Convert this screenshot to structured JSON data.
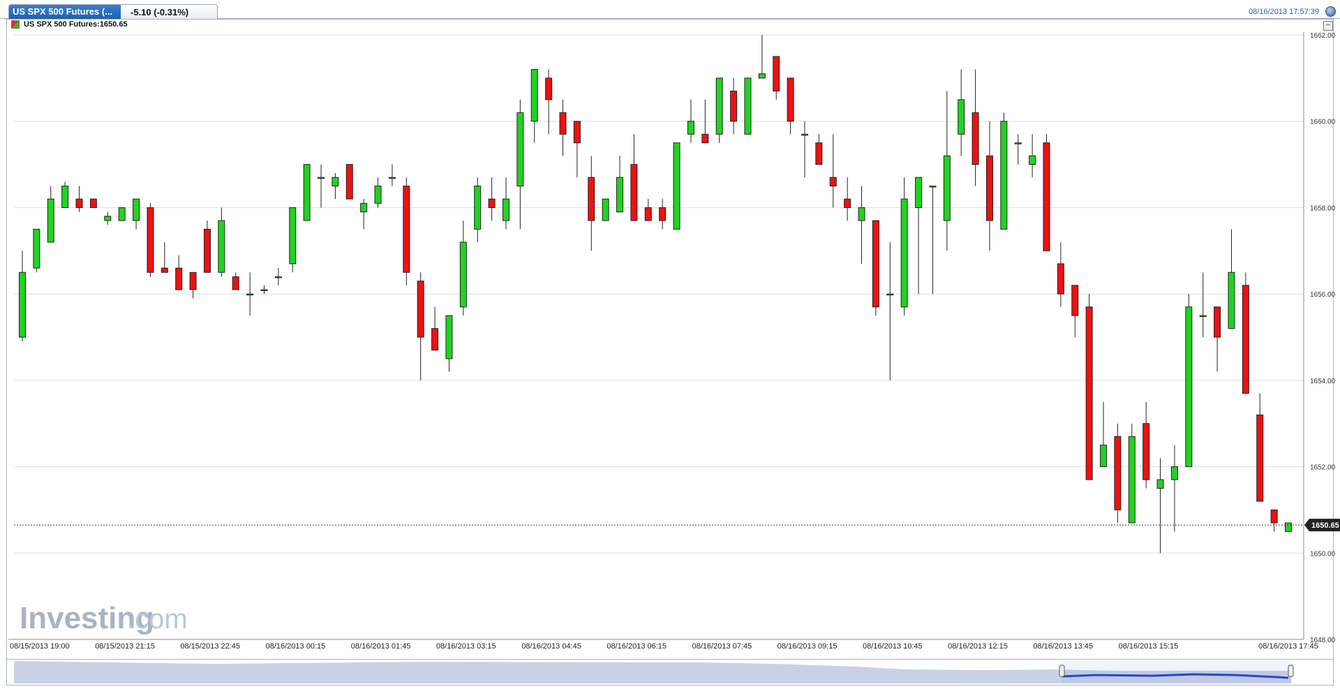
{
  "header": {
    "tab_name": "US SPX 500 Futures (...",
    "tab_change": "-5.10 (-0.31%)",
    "timestamp": "08/16/2013 17:57:39"
  },
  "legend": {
    "label": "US SPX 500 Futures:1650.65"
  },
  "watermark": {
    "brand": "Investing",
    "suffix": ".com"
  },
  "colors": {
    "up": "#21d321",
    "down": "#ee1111",
    "grid": "#dddddd",
    "axis": "#222222",
    "price_tag": "#222222",
    "navigator_fill": "#c9d1e6",
    "navigator_sel": "#2244cc"
  },
  "chart_data": {
    "type": "candlestick",
    "title": "US SPX 500 Futures",
    "last_price": 1650.65,
    "ylim": [
      1648,
      1662
    ],
    "y_ticks": [
      "1648.00",
      "1650.00",
      "1652.00",
      "1654.00",
      "1656.00",
      "1658.00",
      "1660.00",
      "1662.00"
    ],
    "x_ticks": [
      "08/15/2013 19:00",
      "08/15/2013 21:15",
      "08/15/2013 22:45",
      "08/16/2013 00:15",
      "08/16/2013 01:45",
      "08/16/2013 03:15",
      "08/16/2013 04:45",
      "08/16/2013 06:15",
      "08/16/2013 07:45",
      "08/16/2013 09:15",
      "08/16/2013 10:45",
      "08/16/2013 12:15",
      "08/16/2013 13:45",
      "08/16/2013 15:15",
      "08/16/2013 17:45"
    ],
    "grid": true,
    "candles": [
      {
        "o": 1655.0,
        "h": 1657.0,
        "l": 1654.9,
        "c": 1656.5
      },
      {
        "o": 1656.6,
        "h": 1657.5,
        "l": 1656.5,
        "c": 1657.5
      },
      {
        "o": 1657.2,
        "h": 1658.5,
        "l": 1657.2,
        "c": 1658.2
      },
      {
        "o": 1658.0,
        "h": 1658.6,
        "l": 1658.0,
        "c": 1658.5
      },
      {
        "o": 1658.2,
        "h": 1658.5,
        "l": 1657.9,
        "c": 1658.0
      },
      {
        "o": 1658.2,
        "h": 1658.2,
        "l": 1658.0,
        "c": 1658.0
      },
      {
        "o": 1657.7,
        "h": 1657.9,
        "l": 1657.6,
        "c": 1657.8
      },
      {
        "o": 1657.7,
        "h": 1658.0,
        "l": 1657.7,
        "c": 1658.0
      },
      {
        "o": 1657.7,
        "h": 1658.2,
        "l": 1657.5,
        "c": 1658.2
      },
      {
        "o": 1658.0,
        "h": 1658.1,
        "l": 1656.4,
        "c": 1656.5
      },
      {
        "o": 1656.6,
        "h": 1657.2,
        "l": 1656.5,
        "c": 1656.5
      },
      {
        "o": 1656.6,
        "h": 1656.9,
        "l": 1656.1,
        "c": 1656.1
      },
      {
        "o": 1656.5,
        "h": 1656.5,
        "l": 1655.9,
        "c": 1656.1
      },
      {
        "o": 1657.5,
        "h": 1657.7,
        "l": 1656.5,
        "c": 1656.5
      },
      {
        "o": 1656.5,
        "h": 1658.0,
        "l": 1656.4,
        "c": 1657.7
      },
      {
        "o": 1656.4,
        "h": 1656.5,
        "l": 1656.1,
        "c": 1656.1
      },
      {
        "o": 1656.0,
        "h": 1656.5,
        "l": 1655.5,
        "c": 1656.0
      },
      {
        "o": 1656.1,
        "h": 1656.2,
        "l": 1656.0,
        "c": 1656.1
      },
      {
        "o": 1656.4,
        "h": 1656.6,
        "l": 1656.2,
        "c": 1656.4
      },
      {
        "o": 1656.7,
        "h": 1658.0,
        "l": 1656.5,
        "c": 1658.0
      },
      {
        "o": 1657.7,
        "h": 1659.0,
        "l": 1657.7,
        "c": 1659.0
      },
      {
        "o": 1658.7,
        "h": 1659.0,
        "l": 1658.0,
        "c": 1658.7
      },
      {
        "o": 1658.5,
        "h": 1658.8,
        "l": 1658.2,
        "c": 1658.7
      },
      {
        "o": 1659.0,
        "h": 1659.0,
        "l": 1658.2,
        "c": 1658.2
      },
      {
        "o": 1657.9,
        "h": 1658.2,
        "l": 1657.5,
        "c": 1658.1
      },
      {
        "o": 1658.1,
        "h": 1658.7,
        "l": 1658.0,
        "c": 1658.5
      },
      {
        "o": 1658.7,
        "h": 1659.0,
        "l": 1658.5,
        "c": 1658.7
      },
      {
        "o": 1658.5,
        "h": 1658.7,
        "l": 1656.2,
        "c": 1656.5
      },
      {
        "o": 1656.3,
        "h": 1656.5,
        "l": 1654.0,
        "c": 1655.0
      },
      {
        "o": 1655.2,
        "h": 1655.7,
        "l": 1654.7,
        "c": 1654.7
      },
      {
        "o": 1654.5,
        "h": 1655.5,
        "l": 1654.2,
        "c": 1655.5
      },
      {
        "o": 1655.7,
        "h": 1657.7,
        "l": 1655.5,
        "c": 1657.2
      },
      {
        "o": 1657.5,
        "h": 1658.7,
        "l": 1657.2,
        "c": 1658.5
      },
      {
        "o": 1658.2,
        "h": 1658.7,
        "l": 1657.7,
        "c": 1658.0
      },
      {
        "o": 1657.7,
        "h": 1658.7,
        "l": 1657.5,
        "c": 1658.2
      },
      {
        "o": 1658.5,
        "h": 1660.5,
        "l": 1657.5,
        "c": 1660.2
      },
      {
        "o": 1660.0,
        "h": 1661.2,
        "l": 1659.5,
        "c": 1661.2
      },
      {
        "o": 1661.0,
        "h": 1661.2,
        "l": 1659.7,
        "c": 1660.5
      },
      {
        "o": 1660.2,
        "h": 1660.5,
        "l": 1659.2,
        "c": 1659.7
      },
      {
        "o": 1660.0,
        "h": 1660.0,
        "l": 1658.7,
        "c": 1659.5
      },
      {
        "o": 1658.7,
        "h": 1659.2,
        "l": 1657.0,
        "c": 1657.7
      },
      {
        "o": 1657.7,
        "h": 1658.2,
        "l": 1657.7,
        "c": 1658.2
      },
      {
        "o": 1657.9,
        "h": 1659.2,
        "l": 1657.9,
        "c": 1658.7
      },
      {
        "o": 1659.0,
        "h": 1659.7,
        "l": 1657.7,
        "c": 1657.7
      },
      {
        "o": 1658.0,
        "h": 1658.2,
        "l": 1657.7,
        "c": 1657.7
      },
      {
        "o": 1658.0,
        "h": 1658.2,
        "l": 1657.5,
        "c": 1657.7
      },
      {
        "o": 1657.5,
        "h": 1659.5,
        "l": 1657.5,
        "c": 1659.5
      },
      {
        "o": 1659.7,
        "h": 1660.5,
        "l": 1659.5,
        "c": 1660.0
      },
      {
        "o": 1659.7,
        "h": 1660.5,
        "l": 1659.5,
        "c": 1659.5
      },
      {
        "o": 1659.7,
        "h": 1661.0,
        "l": 1659.5,
        "c": 1661.0
      },
      {
        "o": 1660.7,
        "h": 1661.0,
        "l": 1659.7,
        "c": 1660.0
      },
      {
        "o": 1659.7,
        "h": 1661.0,
        "l": 1659.7,
        "c": 1661.0
      },
      {
        "o": 1661.0,
        "h": 1662.0,
        "l": 1661.0,
        "c": 1661.1
      },
      {
        "o": 1661.5,
        "h": 1661.5,
        "l": 1660.5,
        "c": 1660.7
      },
      {
        "o": 1661.0,
        "h": 1661.0,
        "l": 1659.7,
        "c": 1660.0
      },
      {
        "o": 1659.7,
        "h": 1660.0,
        "l": 1658.7,
        "c": 1659.7
      },
      {
        "o": 1659.5,
        "h": 1659.7,
        "l": 1659.0,
        "c": 1659.0
      },
      {
        "o": 1658.7,
        "h": 1659.7,
        "l": 1658.0,
        "c": 1658.5
      },
      {
        "o": 1658.2,
        "h": 1658.7,
        "l": 1657.7,
        "c": 1658.0
      },
      {
        "o": 1657.7,
        "h": 1658.5,
        "l": 1656.7,
        "c": 1658.0
      },
      {
        "o": 1657.7,
        "h": 1657.7,
        "l": 1655.5,
        "c": 1655.7
      },
      {
        "o": 1656.0,
        "h": 1657.2,
        "l": 1654.0,
        "c": 1656.0
      },
      {
        "o": 1655.7,
        "h": 1658.7,
        "l": 1655.5,
        "c": 1658.2
      },
      {
        "o": 1658.0,
        "h": 1658.7,
        "l": 1656.0,
        "c": 1658.7
      },
      {
        "o": 1658.5,
        "h": 1658.5,
        "l": 1656.0,
        "c": 1658.5
      },
      {
        "o": 1657.7,
        "h": 1660.7,
        "l": 1657.0,
        "c": 1659.2
      },
      {
        "o": 1659.7,
        "h": 1661.2,
        "l": 1659.2,
        "c": 1660.5
      },
      {
        "o": 1660.2,
        "h": 1661.2,
        "l": 1658.5,
        "c": 1659.0
      },
      {
        "o": 1659.2,
        "h": 1660.0,
        "l": 1657.0,
        "c": 1657.7
      },
      {
        "o": 1657.5,
        "h": 1660.2,
        "l": 1657.5,
        "c": 1660.0
      },
      {
        "o": 1659.5,
        "h": 1659.7,
        "l": 1659.0,
        "c": 1659.5
      },
      {
        "o": 1659.0,
        "h": 1659.7,
        "l": 1658.7,
        "c": 1659.2
      },
      {
        "o": 1659.5,
        "h": 1659.7,
        "l": 1657.0,
        "c": 1657.0
      },
      {
        "o": 1656.7,
        "h": 1657.2,
        "l": 1655.7,
        "c": 1656.0
      },
      {
        "o": 1656.2,
        "h": 1656.2,
        "l": 1655.0,
        "c": 1655.5
      },
      {
        "o": 1655.7,
        "h": 1656.0,
        "l": 1651.7,
        "c": 1651.7
      },
      {
        "o": 1652.0,
        "h": 1653.5,
        "l": 1652.0,
        "c": 1652.5
      },
      {
        "o": 1652.7,
        "h": 1653.0,
        "l": 1650.7,
        "c": 1651.0
      },
      {
        "o": 1650.7,
        "h": 1653.0,
        "l": 1650.7,
        "c": 1652.7
      },
      {
        "o": 1653.0,
        "h": 1653.5,
        "l": 1651.5,
        "c": 1651.7
      },
      {
        "o": 1651.5,
        "h": 1652.2,
        "l": 1650.0,
        "c": 1651.7
      },
      {
        "o": 1651.7,
        "h": 1652.5,
        "l": 1650.5,
        "c": 1652.0
      },
      {
        "o": 1652.0,
        "h": 1656.0,
        "l": 1652.0,
        "c": 1655.7
      },
      {
        "o": 1655.5,
        "h": 1656.5,
        "l": 1655.0,
        "c": 1655.5
      },
      {
        "o": 1655.7,
        "h": 1655.7,
        "l": 1654.2,
        "c": 1655.0
      },
      {
        "o": 1655.2,
        "h": 1657.5,
        "l": 1655.2,
        "c": 1656.5
      },
      {
        "o": 1656.2,
        "h": 1656.5,
        "l": 1653.7,
        "c": 1653.7
      },
      {
        "o": 1653.2,
        "h": 1653.7,
        "l": 1651.2,
        "c": 1651.2
      },
      {
        "o": 1651.0,
        "h": 1651.0,
        "l": 1650.5,
        "c": 1650.7
      },
      {
        "o": 1650.5,
        "h": 1650.7,
        "l": 1650.5,
        "c": 1650.7
      }
    ]
  }
}
